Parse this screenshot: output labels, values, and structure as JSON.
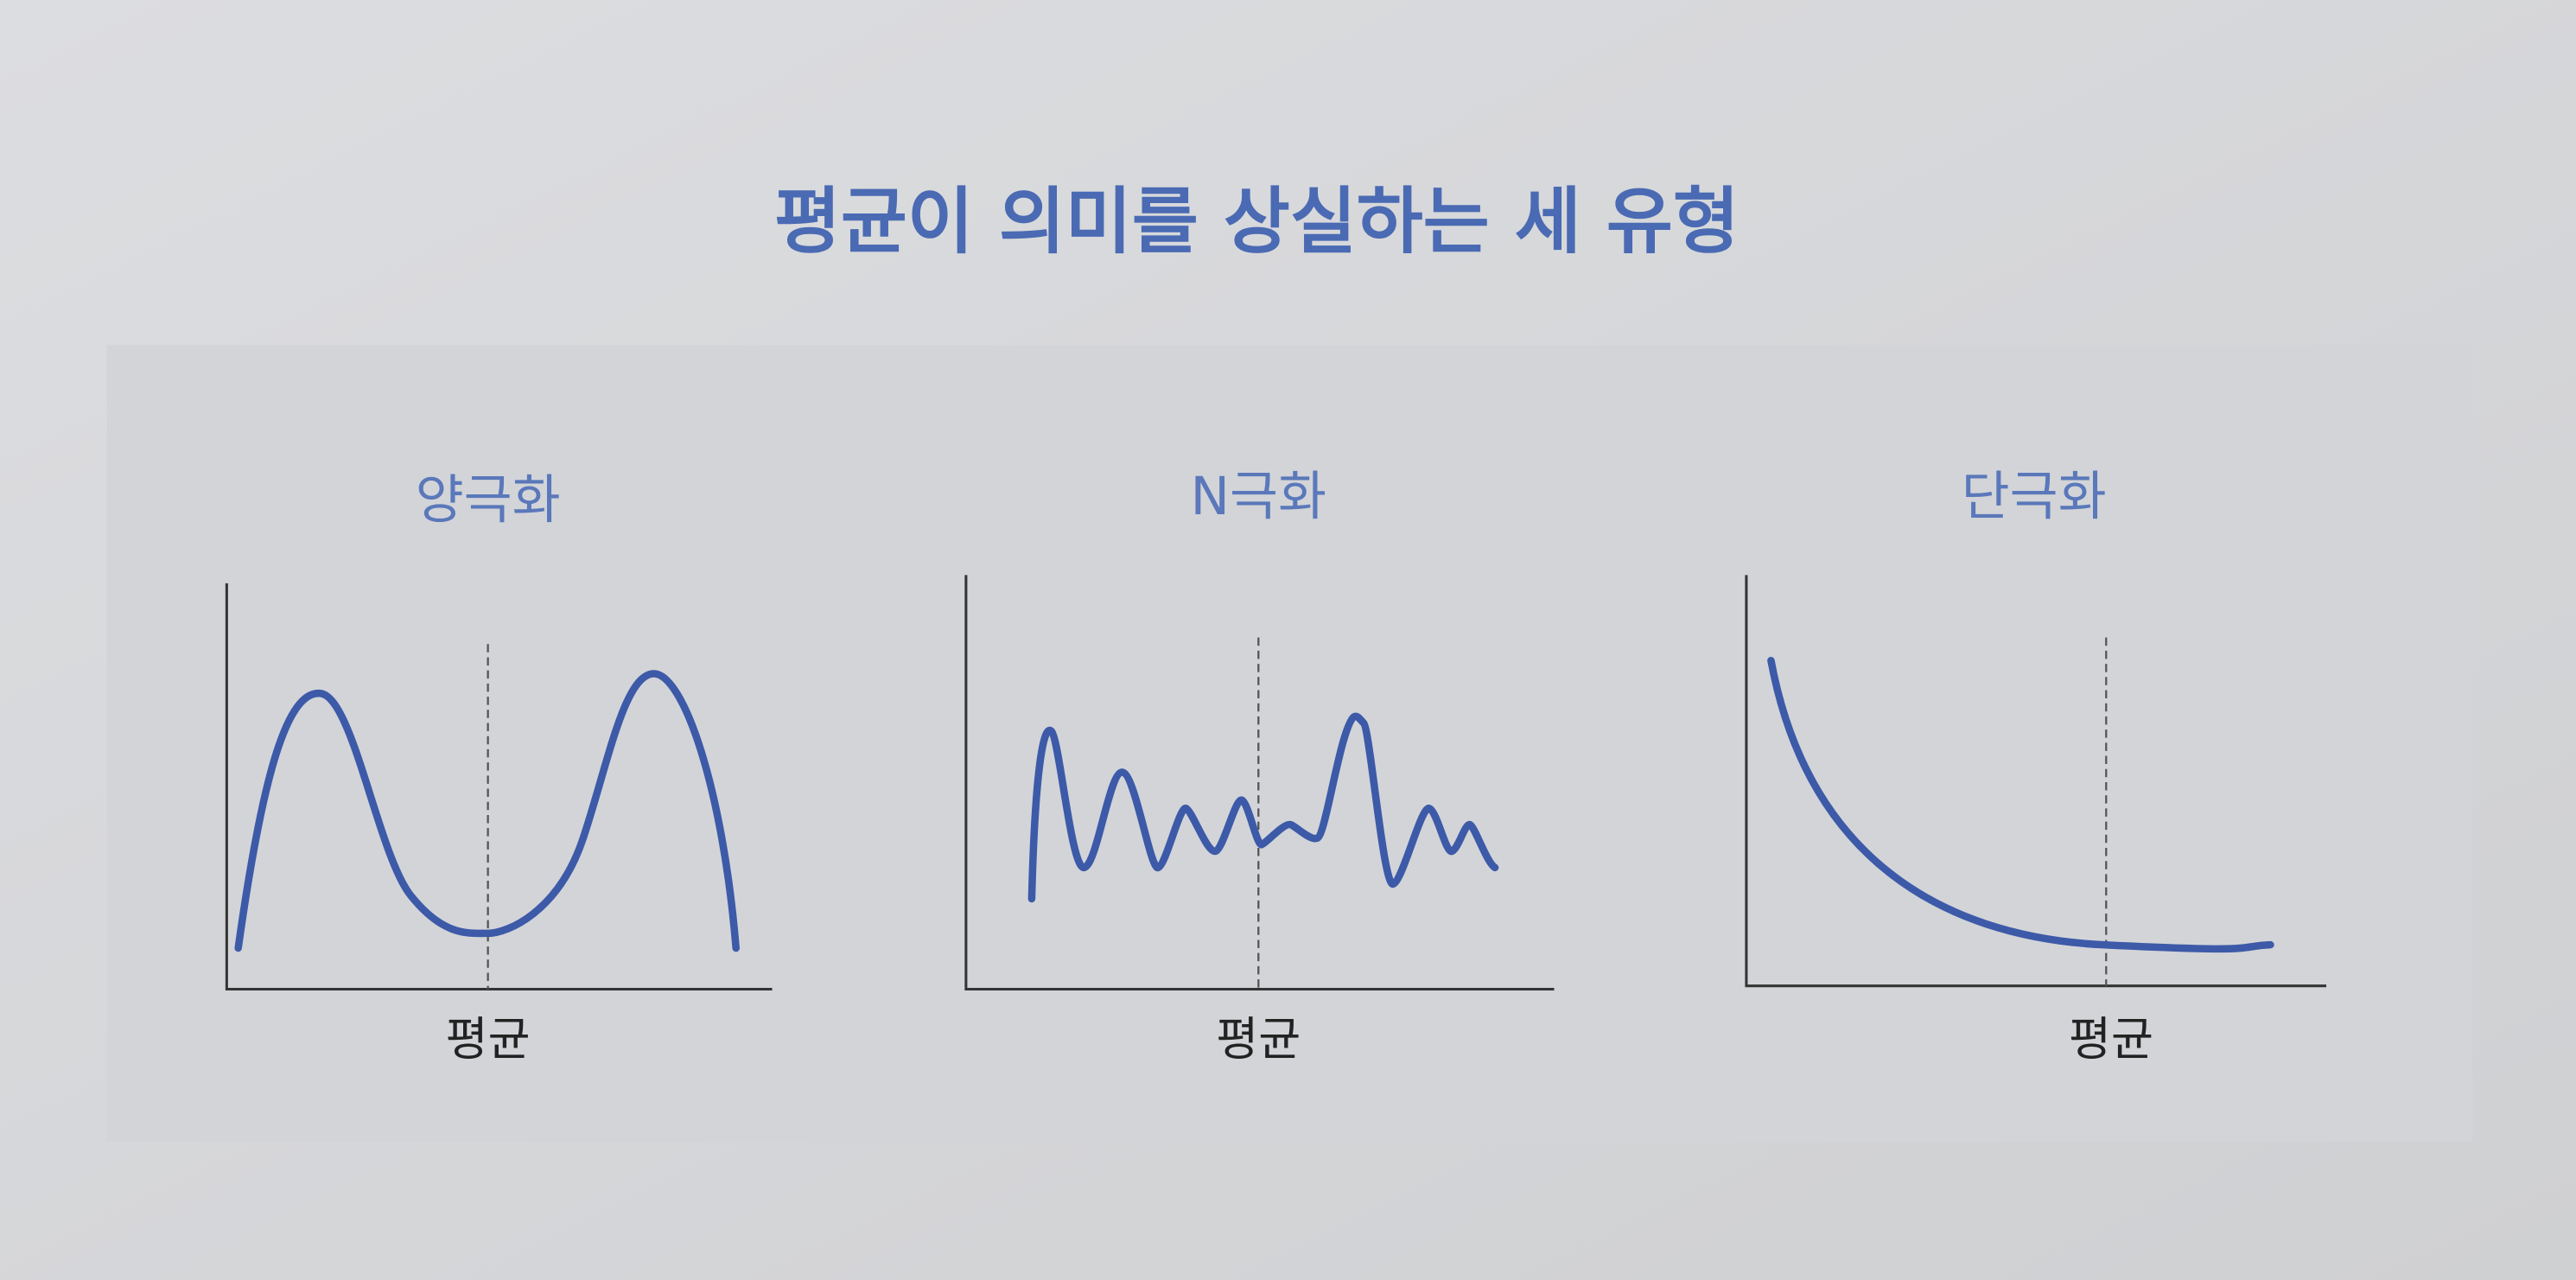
{
  "title": "평균이 의미를 상실하는 세 유형",
  "panels": [
    {
      "label": "양극화",
      "axis_label": "평균"
    },
    {
      "label": "N극화",
      "axis_label": "평균"
    },
    {
      "label": "단극화",
      "axis_label": "평균"
    }
  ]
}
